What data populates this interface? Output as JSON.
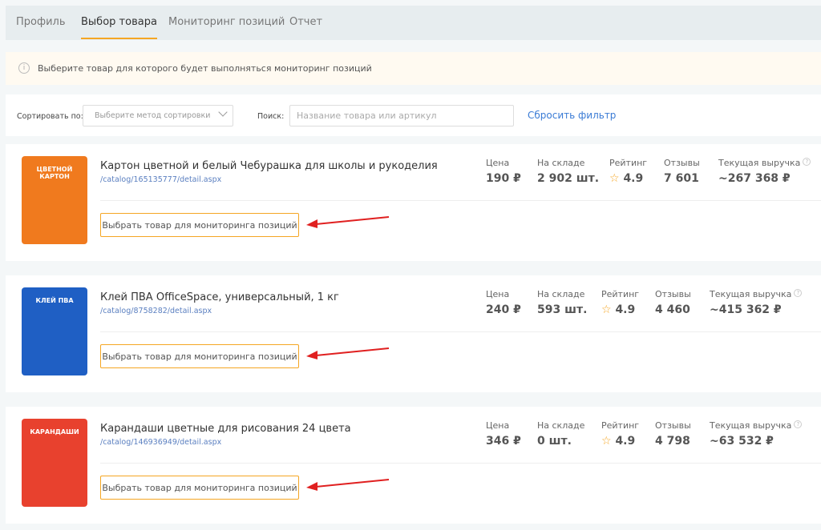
{
  "tabs": [
    {
      "label": "Профиль",
      "active": false
    },
    {
      "label": "Выбор товара",
      "active": true
    },
    {
      "label": "Мониторинг позиций",
      "active": false
    },
    {
      "label": "Отчет",
      "active": false
    }
  ],
  "notice": {
    "icon": "info-icon",
    "text": "Выберите товар для которого будет выполняться мониторинг позиций"
  },
  "filter": {
    "sort_label": "Сортировать по:",
    "sort_placeholder": "Выберите метод сортировки",
    "search_label": "Поиск:",
    "search_placeholder": "Название товара или артикул",
    "reset_label": "Сбросить фильтр"
  },
  "stat_labels": {
    "price": "Цена",
    "stock": "На складе",
    "rating": "Рейтинг",
    "reviews": "Отзывы",
    "revenue": "Текущая выручка"
  },
  "select_button_label": "Выбрать товар для мониторинга позиций",
  "products": [
    {
      "title": "Картон цветной и белый Чебурашка для школы и рукоделия",
      "link": "/catalog/165135777/detail.aspx",
      "image_text": "ЦВЕТНОЙ КАРТОН",
      "image_color": "#f07a1e",
      "price": "190 ₽",
      "stock": "2 902 шт.",
      "rating": "4.9",
      "reviews": "7 601",
      "revenue": "~267 368 ₽"
    },
    {
      "title": "Клей ПВА OfficeSpace, универсальный, 1 кг",
      "link": "/catalog/8758282/detail.aspx",
      "image_text": "КЛЕЙ ПВА",
      "image_color": "#1f5fc4",
      "price": "240 ₽",
      "stock": "593 шт.",
      "rating": "4.9",
      "reviews": "4 460",
      "revenue": "~415 362 ₽"
    },
    {
      "title": "Карандаши цветные для рисования 24 цвета",
      "link": "/catalog/146936949/detail.aspx",
      "image_text": "КАРАНДАШИ",
      "image_color": "#e8412e",
      "price": "346 ₽",
      "stock": "0 шт.",
      "rating": "4.9",
      "reviews": "4 798",
      "revenue": "~63 532 ₽"
    }
  ],
  "colors": {
    "accent": "#f5a623",
    "link": "#3a7bd5",
    "annotation_arrow": "#e02020"
  }
}
